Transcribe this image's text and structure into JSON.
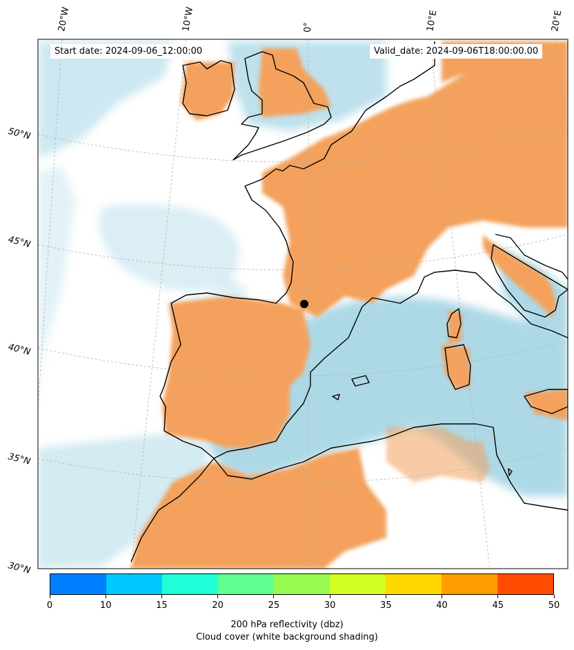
{
  "header": {
    "start_date": "Start date: 2024-09-06_12:00:00",
    "valid_date": "Valid_date: 2024-09-06T18:00:00.00"
  },
  "lon_labels": [
    "20°W",
    "10°W",
    "0°",
    "10°E",
    "20°E"
  ],
  "lat_labels": [
    "50°N",
    "45°N",
    "40°N",
    "35°N",
    "30°N"
  ],
  "colors": {
    "land_warm": "#f3a15c",
    "cloud_blue": "#a9d7e6",
    "coast": "#000000",
    "grid": "#b0b0b0"
  },
  "colorbar": {
    "ticks": [
      "0",
      "10",
      "15",
      "20",
      "25",
      "30",
      "35",
      "40",
      "45",
      "50"
    ],
    "colors": [
      "#0080ff",
      "#00c8ff",
      "#20ffd8",
      "#60ff90",
      "#96fa50",
      "#d2ff22",
      "#ffd800",
      "#ff9d00",
      "#ff4c00"
    ],
    "label": "200 hPa reflectivity (dbz)",
    "sublabel": "Cloud cover (white background shading)"
  }
}
